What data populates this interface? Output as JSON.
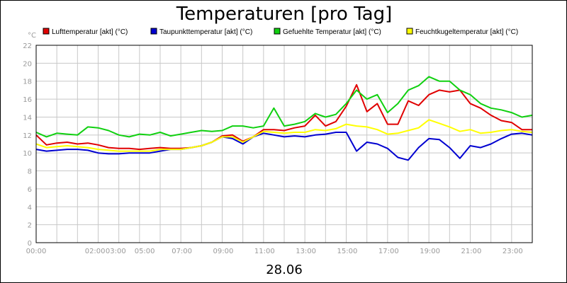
{
  "chart_data": {
    "type": "line",
    "title": "Temperaturen [pro Tag]",
    "unit": "°C",
    "xlabel": "",
    "ylabel": "",
    "date": "28.06",
    "ylim": [
      0,
      22
    ],
    "yticks": [
      0,
      2,
      4,
      6,
      8,
      10,
      12,
      14,
      16,
      18,
      20,
      22
    ],
    "xlim": [
      0,
      24
    ],
    "xticks": [
      {
        "pos": 0,
        "label": "00:00"
      },
      {
        "pos": 2.85,
        "label": "02:00"
      },
      {
        "pos": 3.85,
        "label": "03:00"
      },
      {
        "pos": 5.25,
        "label": "05:00"
      },
      {
        "pos": 7.05,
        "label": "07:00"
      },
      {
        "pos": 9.05,
        "label": "09:00"
      },
      {
        "pos": 11.05,
        "label": "11:00"
      },
      {
        "pos": 13.05,
        "label": "13:00"
      },
      {
        "pos": 15.05,
        "label": "15:00"
      },
      {
        "pos": 17.05,
        "label": "17:00"
      },
      {
        "pos": 19.05,
        "label": "19:00"
      },
      {
        "pos": 21.05,
        "label": "21:00"
      },
      {
        "pos": 23.05,
        "label": "23:00"
      }
    ],
    "grid": true,
    "legend_position": "top",
    "x": [
      0,
      0.5,
      1,
      1.5,
      2,
      2.5,
      3,
      3.5,
      4,
      4.5,
      5,
      5.5,
      6,
      6.5,
      7,
      7.5,
      8,
      8.5,
      9,
      9.5,
      10,
      10.5,
      11,
      11.5,
      12,
      12.5,
      13,
      13.5,
      14,
      14.5,
      15,
      15.5,
      16,
      16.5,
      17,
      17.5,
      18,
      18.5,
      19,
      19.5,
      20,
      20.5,
      21,
      21.5,
      22,
      22.5,
      23,
      23.5,
      24
    ],
    "series": [
      {
        "name": "Lufttemperatur [akt] (°C)",
        "color": "#e00000",
        "values": [
          12.0,
          10.9,
          11.1,
          11.2,
          11.0,
          11.1,
          10.9,
          10.6,
          10.5,
          10.5,
          10.4,
          10.5,
          10.6,
          10.5,
          10.5,
          10.6,
          10.8,
          11.2,
          11.9,
          12.0,
          11.3,
          11.8,
          12.6,
          12.6,
          12.5,
          12.8,
          13.0,
          14.2,
          13.0,
          13.5,
          15.2,
          17.6,
          14.6,
          15.5,
          13.2,
          13.2,
          15.8,
          15.3,
          16.5,
          17.0,
          16.8,
          17.0,
          15.5,
          15.0,
          14.2,
          13.6,
          13.4,
          12.6,
          12.6
        ]
      },
      {
        "name": "Taupunkttemperatur [akt] (°C)",
        "color": "#0000d0",
        "values": [
          10.4,
          10.2,
          10.3,
          10.4,
          10.4,
          10.3,
          10.0,
          9.9,
          9.9,
          10.0,
          10.0,
          10.0,
          10.2,
          10.4,
          10.4,
          10.6,
          10.8,
          11.2,
          11.8,
          11.6,
          11.0,
          11.8,
          12.2,
          12.0,
          11.8,
          11.9,
          11.8,
          12.0,
          12.1,
          12.3,
          12.3,
          10.2,
          11.2,
          11.0,
          10.5,
          9.5,
          9.2,
          10.6,
          11.6,
          11.5,
          10.6,
          9.4,
          10.8,
          10.6,
          11.0,
          11.6,
          12.1,
          12.2,
          12.0
        ]
      },
      {
        "name": "Gefuehlte Temperatur [akt] (°C)",
        "color": "#10d010",
        "values": [
          12.3,
          11.8,
          12.2,
          12.1,
          12.0,
          12.9,
          12.8,
          12.5,
          12.0,
          11.8,
          12.1,
          12.0,
          12.3,
          11.9,
          12.1,
          12.3,
          12.5,
          12.4,
          12.5,
          13.0,
          13.0,
          12.8,
          13.0,
          15.0,
          13.0,
          13.2,
          13.5,
          14.4,
          14.0,
          14.3,
          15.5,
          17.0,
          16.0,
          16.5,
          14.5,
          15.5,
          17.0,
          17.5,
          18.5,
          18.0,
          18.0,
          17.0,
          16.5,
          15.5,
          15.0,
          14.8,
          14.5,
          14.0,
          14.2
        ]
      },
      {
        "name": "Feuchtkugeltemperatur [akt] (°C)",
        "color": "#ffff00",
        "values": [
          11.0,
          10.6,
          10.7,
          10.8,
          10.7,
          10.6,
          10.4,
          10.3,
          10.2,
          10.2,
          10.2,
          10.2,
          10.4,
          10.4,
          10.4,
          10.6,
          10.8,
          11.2,
          11.8,
          11.8,
          11.2,
          11.8,
          12.4,
          12.3,
          12.2,
          12.3,
          12.3,
          12.6,
          12.5,
          12.7,
          13.2,
          13.0,
          12.9,
          12.6,
          12.1,
          12.2,
          12.5,
          12.8,
          13.7,
          13.3,
          12.9,
          12.4,
          12.6,
          12.2,
          12.3,
          12.5,
          12.6,
          12.4,
          12.3
        ]
      }
    ]
  }
}
